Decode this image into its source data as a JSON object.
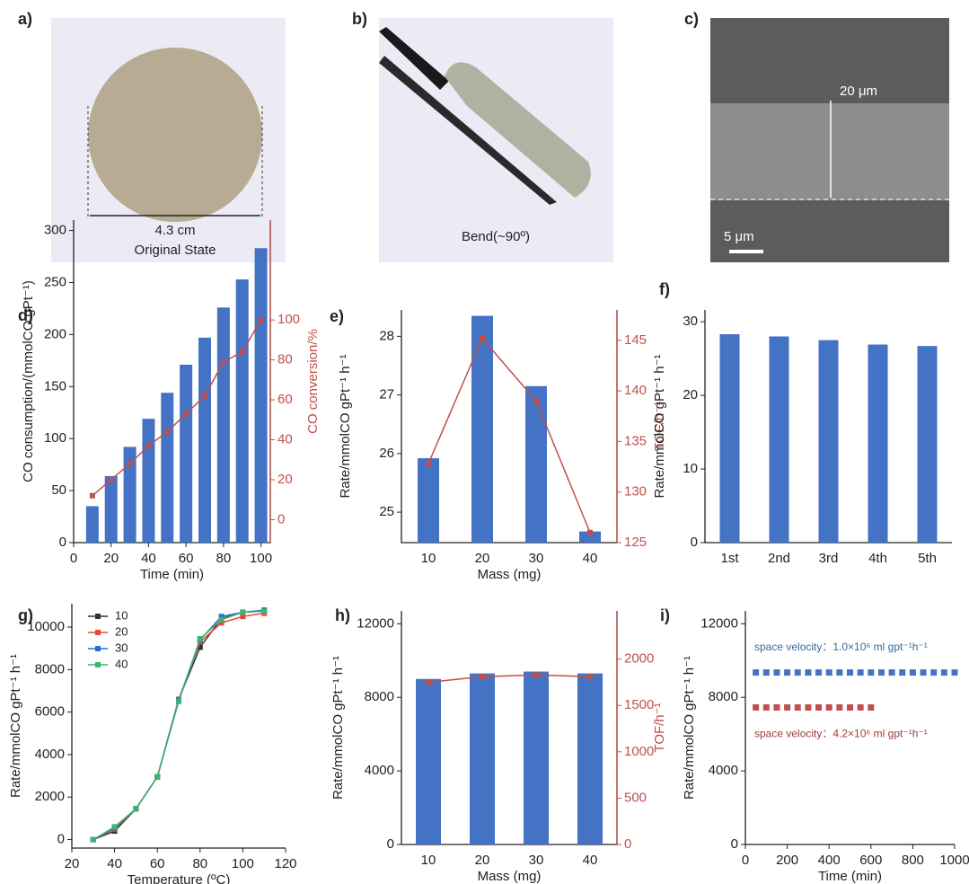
{
  "images": [
    {
      "label": "a)",
      "texts": [
        "4.3 cm",
        "Original State"
      ]
    },
    {
      "label": "b)",
      "texts": [
        "Bend(~90º)"
      ]
    },
    {
      "label": "c)",
      "texts": [
        "20 μm",
        "5 μm"
      ]
    }
  ],
  "chart_data": [
    {
      "type": "bar",
      "label": "d)",
      "xlabel": "Time (min)",
      "ylabel": "CO consumption/(mmolCO gPt⁻¹)",
      "y2label": "CO conversion/%",
      "y2color": "#c0504d",
      "x": [
        10,
        20,
        30,
        40,
        50,
        60,
        70,
        80,
        90,
        100
      ],
      "xlim": [
        0,
        105
      ],
      "xticks": [
        0,
        20,
        40,
        60,
        80,
        100
      ],
      "ylim": [
        0,
        310
      ],
      "yticks": [
        0,
        50,
        100,
        150,
        200,
        250,
        300
      ],
      "y2lim": [
        -11.5,
        150
      ],
      "y2ticks": [
        0,
        20,
        40,
        60,
        80,
        100
      ],
      "series": [
        {
          "type": "bar",
          "color": "#4472c4",
          "values": [
            35,
            64,
            92,
            119,
            144,
            171,
            197,
            226,
            253,
            283
          ]
        },
        {
          "type": "line",
          "axis": "y2",
          "color": "#c0504d",
          "values": [
            12,
            20,
            28,
            37,
            44,
            53,
            62,
            79,
            84,
            100
          ]
        }
      ]
    },
    {
      "type": "bar",
      "label": "e)",
      "xlabel": "Mass (mg)",
      "ylabel": "Rate/mmolCO gPt⁻¹ h⁻¹",
      "y2label": "TOF/h⁻¹",
      "y2color": "#c0504d",
      "categories": [
        "10",
        "20",
        "30",
        "40"
      ],
      "ylim": [
        24.48,
        28.45
      ],
      "yticks": [
        25,
        26,
        27,
        28
      ],
      "y2lim": [
        125,
        148
      ],
      "y2ticks": [
        125,
        130,
        135,
        140,
        145
      ],
      "series": [
        {
          "type": "bar",
          "color": "#4472c4",
          "values": [
            25.92,
            28.35,
            27.15,
            24.67
          ]
        },
        {
          "type": "line",
          "axis": "y2",
          "color": "#c0504d",
          "values": [
            132.8,
            145.2,
            139,
            126
          ]
        }
      ]
    },
    {
      "type": "bar",
      "label": "f)",
      "ylabel": "Rate/mmolCO gPt⁻¹ h⁻¹",
      "categories": [
        "1st",
        "2nd",
        "3rd",
        "4th",
        "5th"
      ],
      "ylim": [
        0,
        31.6
      ],
      "yticks": [
        0,
        10,
        20,
        30
      ],
      "series": [
        {
          "type": "bar",
          "color": "#4472c4",
          "values": [
            28.3,
            28.0,
            27.5,
            26.9,
            26.7
          ]
        }
      ]
    },
    {
      "type": "line",
      "label": "g)",
      "xlabel": "Temperature (ºC)",
      "ylabel": "Rate/mmolCO gPt⁻¹ h⁻¹",
      "legend": "top-left",
      "x": [
        30,
        40,
        50,
        60,
        70,
        80,
        90,
        100,
        110
      ],
      "xlim": [
        20,
        120
      ],
      "xticks": [
        20,
        40,
        60,
        80,
        100,
        120
      ],
      "ylim": [
        -400,
        11100
      ],
      "yticks": [
        0,
        2000,
        4000,
        6000,
        8000,
        10000
      ],
      "series": [
        {
          "name": "10",
          "color": "#333333",
          "values": [
            0,
            400,
            1450,
            2950,
            6600,
            9050,
            10400,
            10700,
            10750
          ]
        },
        {
          "name": "20",
          "color": "#e8463a",
          "values": [
            0,
            500,
            1450,
            2950,
            6600,
            9300,
            10200,
            10500,
            10650
          ]
        },
        {
          "name": "30",
          "color": "#2a6fc9",
          "values": [
            0,
            550,
            1450,
            2950,
            6550,
            9400,
            10500,
            10700,
            10800
          ]
        },
        {
          "name": "40",
          "color": "#3cb371",
          "values": [
            0,
            600,
            1450,
            2950,
            6500,
            9450,
            10350,
            10700,
            10750
          ]
        }
      ]
    },
    {
      "type": "bar",
      "label": "h)",
      "xlabel": "Mass (mg)",
      "ylabel": "Rate/mmolCO gPt⁻¹ h⁻¹",
      "y2label": "TOF/h⁻¹",
      "y2color": "#c0504d",
      "categories": [
        "10",
        "20",
        "30",
        "40"
      ],
      "ylim": [
        0,
        12700
      ],
      "yticks": [
        0,
        4000,
        8000,
        12000
      ],
      "y2lim": [
        0,
        2520
      ],
      "y2ticks": [
        0,
        500,
        1000,
        1500,
        2000
      ],
      "series": [
        {
          "type": "bar",
          "color": "#4472c4",
          "values": [
            9000,
            9300,
            9400,
            9300
          ]
        },
        {
          "type": "line",
          "axis": "y2",
          "color": "#c0504d",
          "values": [
            1750,
            1810,
            1830,
            1810
          ]
        }
      ]
    },
    {
      "type": "scatter",
      "label": "i)",
      "xlabel": "Time (min)",
      "ylabel": "Rate/mmolCO gPt⁻¹ h⁻¹",
      "xlim": [
        0,
        1000
      ],
      "xticks": [
        0,
        200,
        400,
        600,
        800,
        1000
      ],
      "ylim": [
        0,
        12700
      ],
      "yticks": [
        0,
        4000,
        8000,
        12000
      ],
      "annotations": [
        {
          "text": "space velocity：1.0×10⁶ ml gpt⁻¹h⁻¹",
          "color": "#3a6a9a"
        },
        {
          "text": "space velocity：4.2×10⁶ ml gpt⁻¹h⁻¹",
          "color": "#a33a3a"
        }
      ],
      "series": [
        {
          "color": "#4472c4",
          "x": [
            50,
            100,
            150,
            200,
            250,
            300,
            350,
            400,
            450,
            500,
            550,
            600,
            650,
            700,
            750,
            800,
            850,
            900,
            950,
            1000
          ],
          "values": [
            9350,
            9350,
            9350,
            9350,
            9350,
            9350,
            9350,
            9350,
            9350,
            9350,
            9350,
            9350,
            9350,
            9350,
            9350,
            9350,
            9350,
            9350,
            9350,
            9350
          ]
        },
        {
          "color": "#c0504d",
          "x": [
            50,
            100,
            150,
            200,
            250,
            300,
            350,
            400,
            450,
            500,
            550,
            600
          ],
          "values": [
            7450,
            7450,
            7450,
            7450,
            7450,
            7450,
            7450,
            7450,
            7450,
            7450,
            7450,
            7450
          ]
        }
      ]
    }
  ]
}
